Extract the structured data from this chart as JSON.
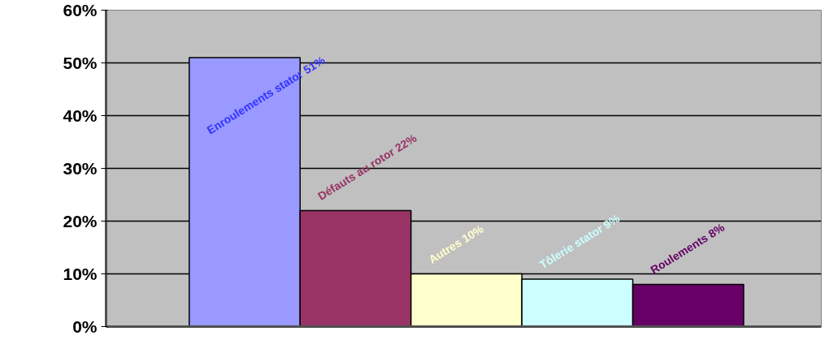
{
  "chart_data": {
    "type": "bar",
    "categories": [
      null,
      null,
      null,
      null,
      null
    ],
    "values": [
      51,
      22,
      10,
      9,
      8
    ],
    "colors": [
      "#9999ff",
      "#993366",
      "#ffffcc",
      "#ccffff",
      "#660066"
    ],
    "value_labels": [
      "Enroulements stator 51%",
      "Défauts au rotor 22%",
      "Autres 10%",
      "Tôlerie stator 9%",
      "Roulements 8%"
    ],
    "ylim": [
      0,
      60
    ],
    "yticks": [
      {
        "value": 0,
        "label": "0%"
      },
      {
        "value": 10,
        "label": "10%"
      },
      {
        "value": 20,
        "label": "20%"
      },
      {
        "value": 30,
        "label": "30%"
      },
      {
        "value": 40,
        "label": "40%"
      },
      {
        "value": 50,
        "label": "50%"
      },
      {
        "value": 60,
        "label": "60%"
      }
    ],
    "grid": "y",
    "tick_labels": "y"
  }
}
